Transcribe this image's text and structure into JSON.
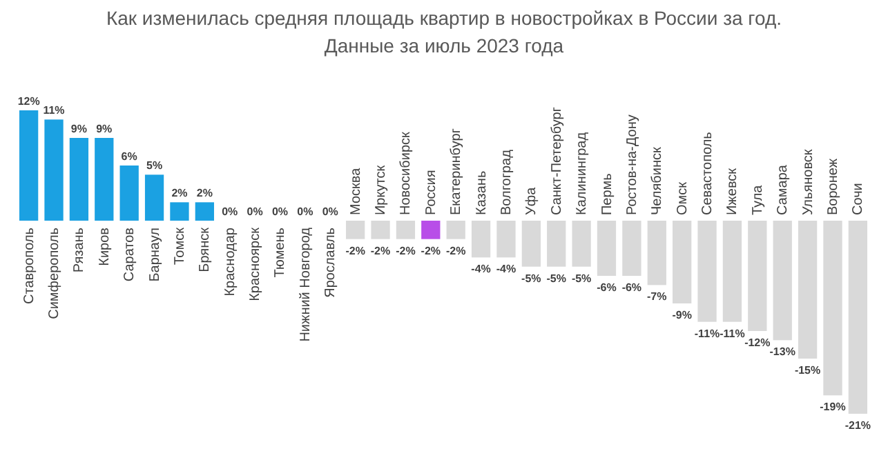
{
  "chart_data": {
    "type": "bar",
    "title": "Как изменилась средняя площадь квартир в новостройках в России за год.",
    "subtitle": "Данные за июль 2023 года",
    "categories": [
      "Ставрополь",
      "Симферополь",
      "Рязань",
      "Киров",
      "Саратов",
      "Барнаул",
      "Томск",
      "Брянск",
      "Краснодар",
      "Красноярск",
      "Тюмень",
      "Нижний Новгород",
      "Ярославль",
      "Москва",
      "Иркутск",
      "Новосибирск",
      "Россия",
      "Екатеринбург",
      "Казань",
      "Волгоград",
      "Уфа",
      "Санкт-Петербург",
      "Калининград",
      "Пермь",
      "Ростов-на-Дону",
      "Челябинск",
      "Омск",
      "Севастополь",
      "Ижевск",
      "Тула",
      "Самара",
      "Ульяновск",
      "Воронеж",
      "Сочи"
    ],
    "values": [
      12,
      11,
      9,
      9,
      6,
      5,
      2,
      2,
      0,
      0,
      0,
      0,
      0,
      -2,
      -2,
      -2,
      -2,
      -2,
      -4,
      -4,
      -5,
      -5,
      -5,
      -6,
      -6,
      -7,
      -9,
      -11,
      -11,
      -12,
      -13,
      -15,
      -19,
      -21
    ],
    "value_labels": [
      "12%",
      "11%",
      "9%",
      "9%",
      "6%",
      "5%",
      "2%",
      "2%",
      "0%",
      "0%",
      "0%",
      "0%",
      "0%",
      "-2%",
      "-2%",
      "-2%",
      "-2%",
      "-2%",
      "-4%",
      "-4%",
      "-5%",
      "-5%",
      "-5%",
      "-6%",
      "-6%",
      "-7%",
      "-9%",
      "-11%",
      "-11%",
      "-12%",
      "-13%",
      "-15%",
      "-19%",
      "-21%"
    ],
    "colors": [
      "#1ba1e2",
      "#1ba1e2",
      "#1ba1e2",
      "#1ba1e2",
      "#1ba1e2",
      "#1ba1e2",
      "#1ba1e2",
      "#1ba1e2",
      "#1ba1e2",
      "#1ba1e2",
      "#1ba1e2",
      "#1ba1e2",
      "#1ba1e2",
      "#d9d9d9",
      "#d9d9d9",
      "#d9d9d9",
      "#b84ee8",
      "#d9d9d9",
      "#d9d9d9",
      "#d9d9d9",
      "#d9d9d9",
      "#d9d9d9",
      "#d9d9d9",
      "#d9d9d9",
      "#d9d9d9",
      "#d9d9d9",
      "#d9d9d9",
      "#d9d9d9",
      "#d9d9d9",
      "#d9d9d9",
      "#d9d9d9",
      "#d9d9d9",
      "#d9d9d9",
      "#d9d9d9"
    ]
  }
}
